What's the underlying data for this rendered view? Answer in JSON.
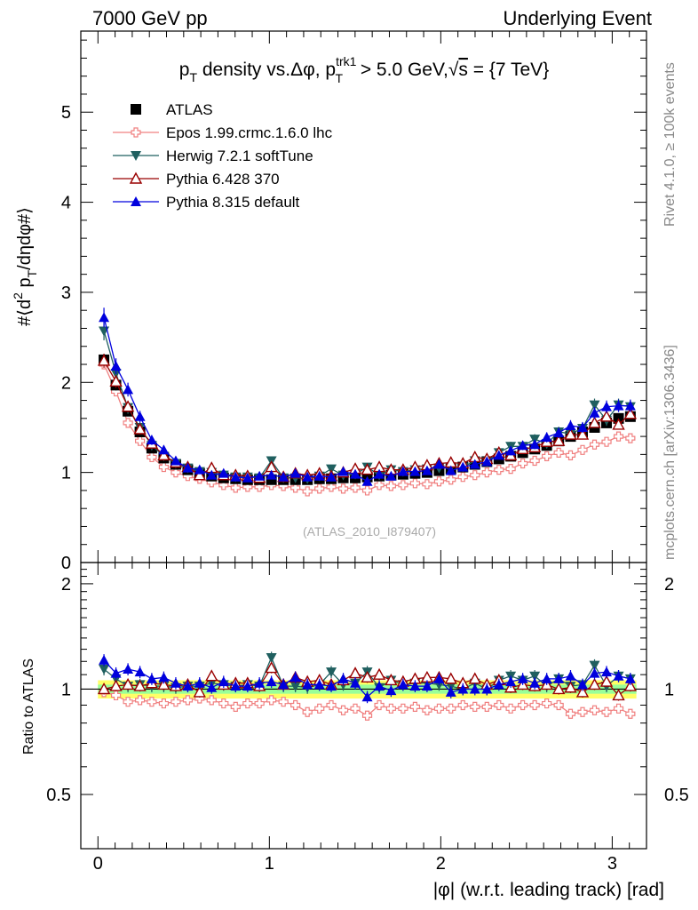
{
  "header": {
    "left": "7000 GeV pp",
    "right": "Underlying Event"
  },
  "side_notes": {
    "rivet": "Rivet 4.1.0, ≥ 100k events",
    "mcplots": "mcplots.cern.ch [arXiv:1306.3436]"
  },
  "watermark": "(ATLAS_2010_I879407)",
  "colors": {
    "atlas": "#000000",
    "epos": "#f08080",
    "herwig": "#1f5f5f",
    "pythia6": "#990000",
    "pythia8": "#0000dd",
    "band_outer": "#ffff66",
    "band_inner": "#99ff99"
  },
  "chart_data": [
    {
      "type": "line",
      "title": "p_T density vs. Δφ, p_T^trk1 > 5.0 GeV, √s = {7 TeV}",
      "title_parts": {
        "a": "p",
        "b": "T",
        "c": " density vs.Δφ, p",
        "d": "trk1",
        "e": "T",
        "f": " > 5.0 GeV,",
        "g": "√",
        "h": "s",
        "i": " = {7 TeV}"
      },
      "ylabel": "#⟨d² p_T/dηdφ#⟩",
      "ylabel_parts": {
        "a": "#⟨d",
        "b": "2",
        "c": " p",
        "d": "T",
        "e": "/dηdφ#⟩"
      },
      "xlim": [
        -0.1,
        3.2
      ],
      "ylim": [
        0,
        5.9
      ],
      "yticks": [
        0,
        1,
        2,
        3,
        4,
        5
      ],
      "ytick_labels": [
        "0",
        "1",
        "2",
        "3",
        "4",
        "5"
      ],
      "x": [
        0.035,
        0.105,
        0.175,
        0.245,
        0.314,
        0.384,
        0.454,
        0.524,
        0.593,
        0.663,
        0.733,
        0.803,
        0.873,
        0.942,
        1.012,
        1.082,
        1.152,
        1.222,
        1.292,
        1.361,
        1.431,
        1.501,
        1.571,
        1.641,
        1.71,
        1.78,
        1.85,
        1.92,
        1.99,
        2.059,
        2.129,
        2.199,
        2.269,
        2.339,
        2.408,
        2.478,
        2.548,
        2.618,
        2.688,
        2.757,
        2.827,
        2.897,
        2.967,
        3.037,
        3.106
      ],
      "series": [
        {
          "name": "ATLAS",
          "values": [
            2.25,
            1.97,
            1.68,
            1.45,
            1.27,
            1.16,
            1.09,
            1.03,
            0.99,
            0.96,
            0.94,
            0.93,
            0.92,
            0.92,
            0.92,
            0.92,
            0.92,
            0.92,
            0.93,
            0.93,
            0.94,
            0.94,
            0.95,
            0.96,
            0.97,
            0.98,
            0.99,
            1.0,
            1.02,
            1.04,
            1.06,
            1.09,
            1.12,
            1.15,
            1.18,
            1.22,
            1.26,
            1.3,
            1.35,
            1.4,
            1.45,
            1.5,
            1.55,
            1.6,
            1.62
          ]
        },
        {
          "name": "Epos 1.99.crmc.1.6.0 lhc",
          "values": [
            2.2,
            1.9,
            1.55,
            1.35,
            1.17,
            1.06,
            1.0,
            0.96,
            0.93,
            0.89,
            0.86,
            0.83,
            0.84,
            0.84,
            0.86,
            0.85,
            0.83,
            0.79,
            0.82,
            0.84,
            0.82,
            0.83,
            0.8,
            0.86,
            0.85,
            0.86,
            0.88,
            0.87,
            0.9,
            0.92,
            0.95,
            0.97,
            1.0,
            1.03,
            1.04,
            1.1,
            1.13,
            1.18,
            1.22,
            1.19,
            1.25,
            1.31,
            1.34,
            1.4,
            1.38
          ]
        },
        {
          "name": "Herwig 7.2.1 softTune",
          "values": [
            2.57,
            2.1,
            1.72,
            1.5,
            1.3,
            1.18,
            1.1,
            1.05,
            1.01,
            1.0,
            0.97,
            0.95,
            0.95,
            0.94,
            1.13,
            0.94,
            0.94,
            0.93,
            0.96,
            1.04,
            0.97,
            0.98,
            1.06,
            0.97,
            1.03,
            1.01,
            1.03,
            1.04,
            1.05,
            1.06,
            1.06,
            1.13,
            1.12,
            1.22,
            1.29,
            1.29,
            1.37,
            1.32,
            1.45,
            1.43,
            1.49,
            1.75,
            1.58,
            1.75,
            1.73
          ]
        },
        {
          "name": "Pythia 6.428 370",
          "values": [
            2.24,
            2.01,
            1.73,
            1.48,
            1.32,
            1.19,
            1.11,
            1.06,
            0.97,
            1.05,
            0.97,
            0.97,
            0.96,
            0.94,
            1.06,
            0.95,
            0.99,
            0.97,
            0.99,
            0.96,
            1.0,
            1.04,
            1.03,
            1.06,
            1.03,
            1.03,
            1.06,
            1.08,
            1.1,
            1.11,
            1.1,
            1.17,
            1.15,
            1.22,
            1.19,
            1.26,
            1.28,
            1.34,
            1.35,
            1.42,
            1.42,
            1.55,
            1.62,
            1.53,
            1.65
          ]
        },
        {
          "name": "Pythia 8.315 default",
          "values": [
            2.72,
            2.18,
            1.92,
            1.62,
            1.36,
            1.25,
            1.13,
            1.05,
            1.03,
            0.97,
            0.99,
            0.95,
            0.94,
            0.96,
            0.97,
            0.95,
            0.99,
            0.95,
            0.96,
            0.95,
            1.01,
            0.98,
            0.9,
            0.98,
            0.96,
            1.01,
            1.01,
            1.02,
            1.09,
            1.02,
            1.06,
            1.09,
            1.12,
            1.19,
            1.24,
            1.3,
            1.31,
            1.39,
            1.44,
            1.52,
            1.5,
            1.66,
            1.73,
            1.74,
            1.74
          ]
        }
      ]
    },
    {
      "type": "line",
      "title": "",
      "xlabel": "|φ| (w.r.t. leading track) [rad]",
      "ylabel": "Ratio to ATLAS",
      "xlim": [
        -0.1,
        3.2
      ],
      "ylim": [
        0.35,
        2.3
      ],
      "xticks": [
        0,
        1,
        2,
        3
      ],
      "xtick_labels": [
        "0",
        "1",
        "2",
        "3"
      ],
      "yticks": [
        0.5,
        1,
        2
      ],
      "ytick_labels": [
        "0.5",
        "1",
        "2"
      ],
      "band_outer": [
        0.94,
        1.06
      ],
      "band_inner": [
        0.97,
        1.03
      ],
      "series": [
        {
          "name": "Epos 1.99.crmc.1.6.0 lhc",
          "values": [
            0.98,
            0.96,
            0.92,
            0.93,
            0.92,
            0.91,
            0.92,
            0.93,
            0.94,
            0.93,
            0.91,
            0.89,
            0.91,
            0.91,
            0.93,
            0.92,
            0.9,
            0.86,
            0.88,
            0.9,
            0.87,
            0.88,
            0.84,
            0.9,
            0.88,
            0.88,
            0.89,
            0.87,
            0.88,
            0.88,
            0.9,
            0.89,
            0.89,
            0.9,
            0.88,
            0.9,
            0.9,
            0.91,
            0.9,
            0.85,
            0.86,
            0.87,
            0.86,
            0.88,
            0.85
          ]
        },
        {
          "name": "Herwig 7.2.1 softTune",
          "values": [
            1.14,
            1.07,
            1.02,
            1.03,
            1.02,
            1.02,
            1.01,
            1.02,
            1.02,
            1.04,
            1.03,
            1.02,
            1.03,
            1.02,
            1.23,
            1.02,
            1.02,
            1.01,
            1.03,
            1.12,
            1.03,
            1.04,
            1.12,
            1.01,
            1.06,
            1.03,
            1.04,
            1.04,
            1.03,
            1.02,
            1,
            1.04,
            1,
            1.06,
            1.09,
            1.06,
            1.09,
            1.02,
            1.07,
            1.02,
            1.03,
            1.17,
            1.02,
            1.09,
            1.07
          ]
        },
        {
          "name": "Pythia 6.428 370",
          "values": [
            1,
            1.02,
            1.03,
            1.02,
            1.04,
            1.03,
            1.02,
            1.03,
            0.98,
            1.09,
            1.03,
            1.04,
            1.04,
            1.02,
            1.15,
            1.03,
            1.08,
            1.05,
            1.06,
            1.03,
            1.06,
            1.11,
            1.08,
            1.1,
            1.06,
            1.05,
            1.07,
            1.08,
            1.08,
            1.07,
            1.04,
            1.07,
            1.03,
            1.06,
            1.01,
            1.03,
            1.02,
            1.03,
            1,
            1.01,
            0.98,
            1.03,
            1.05,
            0.96,
            1.02
          ]
        },
        {
          "name": "Pythia 8.315 default",
          "values": [
            1.21,
            1.11,
            1.14,
            1.12,
            1.07,
            1.08,
            1.04,
            1.02,
            1.04,
            1.01,
            1.05,
            1.02,
            1.02,
            1.04,
            1.05,
            1.03,
            1.08,
            1.03,
            1.03,
            1.02,
            1.07,
            1.04,
            0.95,
            1.02,
            0.99,
            1.03,
            1.02,
            1.02,
            1.07,
            0.98,
            1,
            1,
            1,
            1.03,
            1.05,
            1.07,
            1.04,
            1.07,
            1.07,
            1.09,
            1.03,
            1.11,
            1.12,
            1.09,
            1.07
          ]
        }
      ]
    }
  ]
}
